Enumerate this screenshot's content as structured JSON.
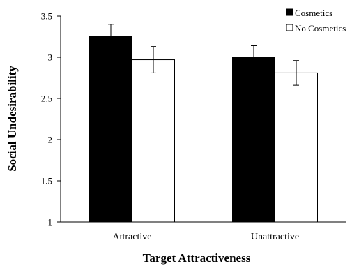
{
  "chart_data": {
    "type": "bar",
    "categories": [
      "Attractive",
      "Unattractive"
    ],
    "series": [
      {
        "name": "Cosmetics",
        "values": [
          3.25,
          3.0
        ],
        "errors": [
          0.15,
          0.14
        ],
        "color": "#000000"
      },
      {
        "name": "No Cosmetics",
        "values": [
          2.97,
          2.81
        ],
        "errors": [
          0.16,
          0.15
        ],
        "color": "#ffffff"
      }
    ],
    "xlabel": "Target Attractiveness",
    "ylabel": "Social Undesirability",
    "ylim": [
      1,
      3.5
    ],
    "yticks": [
      "1",
      "1.5",
      "2",
      "2.5",
      "3",
      "3.5"
    ],
    "grid": false,
    "legend_position": "top-right"
  }
}
